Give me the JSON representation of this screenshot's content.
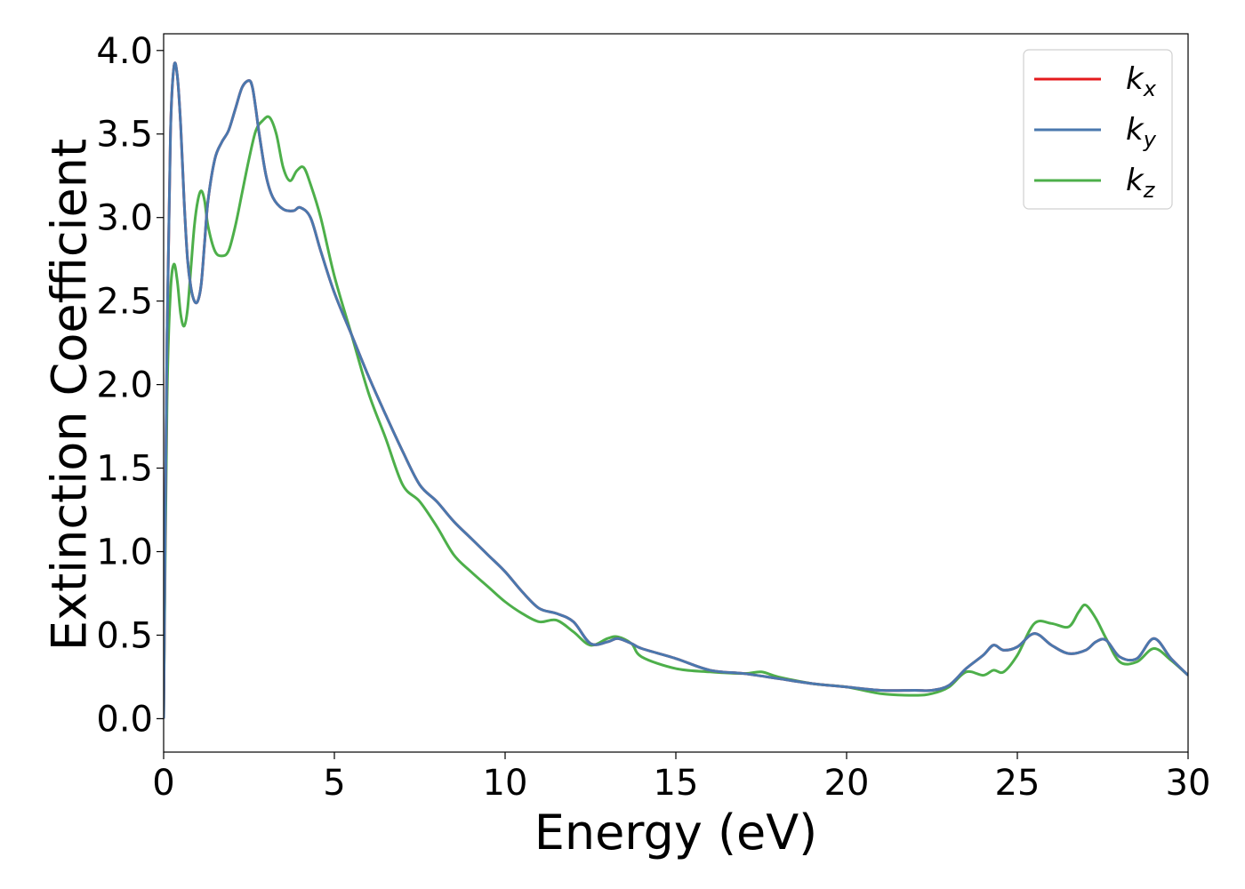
{
  "chart_data": {
    "type": "line",
    "title": "",
    "xlabel": "Energy (eV)",
    "ylabel": "Extinction Coefficient",
    "xlim": [
      0,
      30
    ],
    "ylim": [
      -0.2,
      4.1
    ],
    "xticks": [
      0,
      5,
      10,
      15,
      20,
      25,
      30
    ],
    "xtick_labels": [
      "0",
      "5",
      "10",
      "15",
      "20",
      "25",
      "30"
    ],
    "yticks": [
      0.0,
      0.5,
      1.0,
      1.5,
      2.0,
      2.5,
      3.0,
      3.5,
      4.0
    ],
    "ytick_labels": [
      "0.0",
      "0.5",
      "1.0",
      "1.5",
      "2.0",
      "2.5",
      "3.0",
      "3.5",
      "4.0"
    ],
    "grid": false,
    "legend_position": "top-right",
    "series": [
      {
        "name": "k_x",
        "legend_base": "k",
        "legend_sub": "x",
        "color": "#e41a1c",
        "x": [
          0,
          0.1,
          0.2,
          0.3,
          0.4,
          0.5,
          0.6,
          0.7,
          0.8,
          0.9,
          1.0,
          1.1,
          1.2,
          1.3,
          1.5,
          1.7,
          1.9,
          2.1,
          2.3,
          2.5,
          2.6,
          2.7,
          2.8,
          3.0,
          3.2,
          3.5,
          3.8,
          4.0,
          4.3,
          4.6,
          5.0,
          5.5,
          6.0,
          6.5,
          7.0,
          7.5,
          8.0,
          8.5,
          9.0,
          9.5,
          10.0,
          10.5,
          11.0,
          11.5,
          12.0,
          12.5,
          13.0,
          13.3,
          13.7,
          14.0,
          15.0,
          16.0,
          17.0,
          18.0,
          19.0,
          20.0,
          21.0,
          22.0,
          22.5,
          23.0,
          23.5,
          24.0,
          24.3,
          24.6,
          25.0,
          25.5,
          26.0,
          26.5,
          27.0,
          27.3,
          27.6,
          28.0,
          28.5,
          29.0,
          29.5,
          30.0
        ],
        "values": [
          0,
          2.3,
          3.5,
          3.9,
          3.85,
          3.55,
          3.1,
          2.75,
          2.58,
          2.5,
          2.5,
          2.6,
          2.85,
          3.1,
          3.35,
          3.45,
          3.52,
          3.65,
          3.78,
          3.82,
          3.78,
          3.65,
          3.5,
          3.25,
          3.12,
          3.05,
          3.04,
          3.06,
          3.0,
          2.8,
          2.55,
          2.3,
          2.05,
          1.82,
          1.6,
          1.4,
          1.3,
          1.18,
          1.08,
          0.98,
          0.88,
          0.76,
          0.66,
          0.63,
          0.58,
          0.45,
          0.46,
          0.48,
          0.45,
          0.42,
          0.36,
          0.29,
          0.27,
          0.24,
          0.21,
          0.19,
          0.17,
          0.17,
          0.17,
          0.2,
          0.3,
          0.38,
          0.44,
          0.41,
          0.43,
          0.51,
          0.44,
          0.39,
          0.41,
          0.46,
          0.47,
          0.37,
          0.36,
          0.48,
          0.36,
          0.26
        ]
      },
      {
        "name": "k_y",
        "legend_base": "k",
        "legend_sub": "y",
        "color": "#4a78ae",
        "x": [
          0,
          0.1,
          0.2,
          0.3,
          0.4,
          0.5,
          0.6,
          0.7,
          0.8,
          0.9,
          1.0,
          1.1,
          1.2,
          1.3,
          1.5,
          1.7,
          1.9,
          2.1,
          2.3,
          2.5,
          2.6,
          2.7,
          2.8,
          3.0,
          3.2,
          3.5,
          3.8,
          4.0,
          4.3,
          4.6,
          5.0,
          5.5,
          6.0,
          6.5,
          7.0,
          7.5,
          8.0,
          8.5,
          9.0,
          9.5,
          10.0,
          10.5,
          11.0,
          11.5,
          12.0,
          12.5,
          13.0,
          13.3,
          13.7,
          14.0,
          15.0,
          16.0,
          17.0,
          18.0,
          19.0,
          20.0,
          21.0,
          22.0,
          22.5,
          23.0,
          23.5,
          24.0,
          24.3,
          24.6,
          25.0,
          25.5,
          26.0,
          26.5,
          27.0,
          27.3,
          27.6,
          28.0,
          28.5,
          29.0,
          29.5,
          30.0
        ],
        "values": [
          0,
          2.3,
          3.5,
          3.9,
          3.85,
          3.55,
          3.1,
          2.75,
          2.58,
          2.5,
          2.5,
          2.6,
          2.85,
          3.1,
          3.35,
          3.45,
          3.52,
          3.65,
          3.78,
          3.82,
          3.78,
          3.65,
          3.5,
          3.25,
          3.12,
          3.05,
          3.04,
          3.06,
          3.0,
          2.8,
          2.55,
          2.3,
          2.05,
          1.82,
          1.6,
          1.4,
          1.3,
          1.18,
          1.08,
          0.98,
          0.88,
          0.76,
          0.66,
          0.63,
          0.58,
          0.45,
          0.46,
          0.48,
          0.45,
          0.42,
          0.36,
          0.29,
          0.27,
          0.24,
          0.21,
          0.19,
          0.17,
          0.17,
          0.17,
          0.2,
          0.3,
          0.38,
          0.44,
          0.41,
          0.43,
          0.51,
          0.44,
          0.39,
          0.41,
          0.46,
          0.47,
          0.37,
          0.36,
          0.48,
          0.36,
          0.26
        ]
      },
      {
        "name": "k_z",
        "legend_base": "k",
        "legend_sub": "z",
        "color": "#4daf4a",
        "x": [
          0,
          0.1,
          0.2,
          0.3,
          0.4,
          0.5,
          0.6,
          0.7,
          0.8,
          0.9,
          1.0,
          1.1,
          1.2,
          1.3,
          1.5,
          1.7,
          1.9,
          2.1,
          2.3,
          2.5,
          2.7,
          2.9,
          3.1,
          3.3,
          3.5,
          3.7,
          3.9,
          4.1,
          4.3,
          4.6,
          5.0,
          5.5,
          6.0,
          6.5,
          7.0,
          7.5,
          8.0,
          8.5,
          9.0,
          9.5,
          10.0,
          10.5,
          11.0,
          11.5,
          12.0,
          12.5,
          13.0,
          13.3,
          13.7,
          14.0,
          15.0,
          16.0,
          17.0,
          17.5,
          18.0,
          19.0,
          20.0,
          21.0,
          22.0,
          22.5,
          23.0,
          23.5,
          24.0,
          24.3,
          24.6,
          25.0,
          25.5,
          26.0,
          26.5,
          26.8,
          27.0,
          27.3,
          27.6,
          28.0,
          28.5,
          29.0,
          29.5,
          30.0
        ],
        "values": [
          0,
          1.9,
          2.55,
          2.72,
          2.62,
          2.42,
          2.35,
          2.45,
          2.7,
          2.95,
          3.1,
          3.16,
          3.1,
          2.95,
          2.8,
          2.77,
          2.8,
          2.95,
          3.15,
          3.35,
          3.52,
          3.58,
          3.6,
          3.5,
          3.3,
          3.22,
          3.28,
          3.3,
          3.2,
          3.0,
          2.65,
          2.3,
          1.95,
          1.68,
          1.4,
          1.3,
          1.15,
          0.98,
          0.88,
          0.79,
          0.7,
          0.63,
          0.58,
          0.59,
          0.52,
          0.44,
          0.48,
          0.49,
          0.45,
          0.37,
          0.3,
          0.28,
          0.27,
          0.28,
          0.25,
          0.21,
          0.19,
          0.15,
          0.14,
          0.15,
          0.19,
          0.28,
          0.26,
          0.29,
          0.28,
          0.38,
          0.57,
          0.57,
          0.55,
          0.64,
          0.68,
          0.6,
          0.48,
          0.34,
          0.34,
          0.42,
          0.35,
          0.26
        ]
      }
    ]
  }
}
